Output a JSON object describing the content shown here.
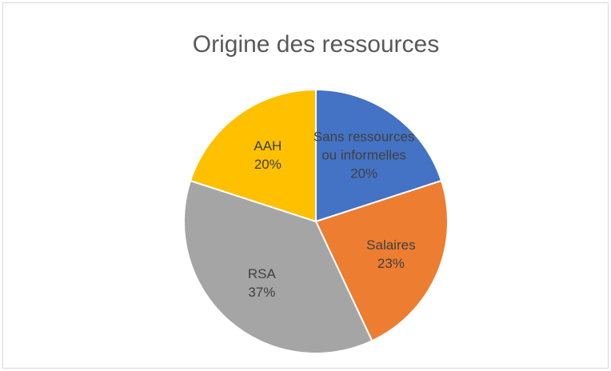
{
  "chart_data": {
    "type": "pie",
    "title": "Origine des ressources",
    "categories": [
      "Sans ressources ou informelles",
      "Salaires",
      "RSA",
      "AAH"
    ],
    "values": [
      20,
      23,
      37,
      20
    ],
    "value_labels": [
      "20%",
      "23%",
      "37%",
      "20%"
    ],
    "colors": [
      "#4472c4",
      "#ed7d31",
      "#a5a5a5",
      "#ffc000"
    ]
  }
}
